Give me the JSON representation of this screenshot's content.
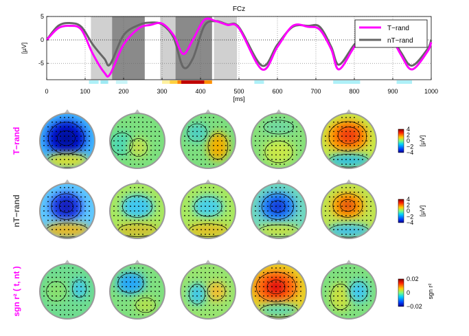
{
  "chart_data": [
    {
      "type": "line",
      "title": "FCz",
      "xlabel": "[ms]",
      "ylabel": "[µV]",
      "xlim": [
        0,
        1000
      ],
      "ylim": [
        -8.5,
        5
      ],
      "x_ticks": [
        "0",
        "100",
        "200",
        "300",
        "400",
        "500",
        "600",
        "700",
        "800",
        "900",
        "1000"
      ],
      "y_ticks": [
        "5",
        "0",
        "-5"
      ],
      "grid": "dotted",
      "legend": "top-right",
      "series": [
        {
          "name": "T−rand",
          "color": "#ff00ff",
          "x": [
            0,
            30,
            60,
            90,
            120,
            150,
            165,
            200,
            240,
            270,
            300,
            330,
            355,
            380,
            410,
            440,
            470,
            500,
            560,
            600,
            640,
            680,
            710,
            740,
            760,
            800,
            840,
            880,
            920,
            950,
            990,
            1000
          ],
          "y": [
            0,
            2.5,
            3,
            2.2,
            -3,
            -7,
            -7.3,
            -1,
            2.5,
            3.2,
            3.5,
            1,
            -3,
            0,
            4.3,
            4,
            3.2,
            2.5,
            -6.3,
            -1.5,
            3,
            2.8,
            2.2,
            -2,
            -6.3,
            -1.5,
            2.7,
            2.8,
            -3,
            -6.3,
            -2.5,
            -0.5
          ]
        },
        {
          "name": "nT−rand",
          "color": "#666666",
          "x": [
            0,
            30,
            60,
            90,
            120,
            150,
            165,
            200,
            240,
            270,
            300,
            330,
            355,
            380,
            410,
            440,
            470,
            500,
            560,
            600,
            640,
            680,
            710,
            740,
            760,
            800,
            840,
            880,
            920,
            950,
            990,
            1000
          ],
          "y": [
            0,
            3,
            3.6,
            2.8,
            -1,
            -4,
            -5.2,
            1,
            3.2,
            3.7,
            3.3,
            0.5,
            -5.8,
            -4,
            3,
            4,
            3.3,
            2.7,
            -5.5,
            -1,
            2.8,
            3,
            2.8,
            -1.5,
            -5.3,
            -1,
            2.6,
            3,
            -2.5,
            -5.5,
            -2,
            0
          ]
        }
      ],
      "shaded_intervals": [
        {
          "x": [
            115,
            170
          ],
          "shade": "light"
        },
        {
          "x": [
            170,
            255
          ],
          "shade": "dark"
        },
        {
          "x": [
            295,
            335
          ],
          "shade": "light"
        },
        {
          "x": [
            335,
            430
          ],
          "shade": "dark"
        },
        {
          "x": [
            435,
            495
          ],
          "shade": "light"
        }
      ]
    },
    {
      "type": "heatmap",
      "rows": [
        {
          "label": "T−rand",
          "color": "#ff00ff",
          "colorbar": {
            "ticks": [
              "4",
              "2",
              "0",
              "−2",
              "−4"
            ],
            "unit": "[µV]"
          },
          "maps": [
            {
              "bg": "#3fb4ff",
              "blobs": [
                {
                  "x": 0.48,
                  "y": 0.45,
                  "rx": 0.36,
                  "ry": 0.32,
                  "c": "#0018d0"
                },
                {
                  "x": 0.48,
                  "y": 0.45,
                  "rx": 0.18,
                  "ry": 0.15,
                  "c": "#000a9a"
                },
                {
                  "x": 0.5,
                  "y": 0.86,
                  "rx": 0.4,
                  "ry": 0.14,
                  "c": "#d8e030"
                }
              ]
            },
            {
              "bg": "#7de07f",
              "blobs": [
                {
                  "x": 0.22,
                  "y": 0.55,
                  "rx": 0.22,
                  "ry": 0.22,
                  "c": "#50d8b0"
                },
                {
                  "x": 0.52,
                  "y": 0.62,
                  "rx": 0.18,
                  "ry": 0.18,
                  "c": "#c0e050"
                }
              ]
            },
            {
              "bg": "#7dde7f",
              "blobs": [
                {
                  "x": 0.68,
                  "y": 0.6,
                  "rx": 0.2,
                  "ry": 0.26,
                  "c": "#f0b000"
                },
                {
                  "x": 0.3,
                  "y": 0.35,
                  "rx": 0.2,
                  "ry": 0.18,
                  "c": "#50d0c0"
                }
              ]
            },
            {
              "bg": "#88e07a",
              "blobs": [
                {
                  "x": 0.5,
                  "y": 0.25,
                  "rx": 0.3,
                  "ry": 0.14,
                  "c": "#70d8a0"
                },
                {
                  "x": 0.5,
                  "y": 0.7,
                  "rx": 0.28,
                  "ry": 0.22,
                  "c": "#c8e848"
                }
              ]
            },
            {
              "bg": "#c8e848",
              "blobs": [
                {
                  "x": 0.48,
                  "y": 0.42,
                  "rx": 0.38,
                  "ry": 0.3,
                  "c": "#ff9a00"
                },
                {
                  "x": 0.5,
                  "y": 0.4,
                  "rx": 0.22,
                  "ry": 0.17,
                  "c": "#f04010"
                },
                {
                  "x": 0.5,
                  "y": 0.86,
                  "rx": 0.4,
                  "ry": 0.13,
                  "c": "#30c0e0"
                }
              ]
            }
          ]
        },
        {
          "label": "nT−rand",
          "color": "#555555",
          "colorbar": {
            "ticks": [
              "4",
              "2",
              "0",
              "−2",
              "−4"
            ],
            "unit": "[µV]"
          },
          "maps": [
            {
              "bg": "#60c8ff",
              "blobs": [
                {
                  "x": 0.48,
                  "y": 0.42,
                  "rx": 0.3,
                  "ry": 0.26,
                  "c": "#2040e8"
                },
                {
                  "x": 0.48,
                  "y": 0.42,
                  "rx": 0.14,
                  "ry": 0.12,
                  "c": "#0818b0"
                },
                {
                  "x": 0.5,
                  "y": 0.85,
                  "rx": 0.42,
                  "ry": 0.14,
                  "c": "#e8b820"
                }
              ]
            },
            {
              "bg": "#a8e860",
              "blobs": [
                {
                  "x": 0.5,
                  "y": 0.42,
                  "rx": 0.3,
                  "ry": 0.22,
                  "c": "#40c8f0"
                },
                {
                  "x": 0.5,
                  "y": 0.85,
                  "rx": 0.38,
                  "ry": 0.13,
                  "c": "#d0c030"
                }
              ]
            },
            {
              "bg": "#a8e860",
              "blobs": [
                {
                  "x": 0.5,
                  "y": 0.42,
                  "rx": 0.28,
                  "ry": 0.2,
                  "c": "#48d0e8"
                },
                {
                  "x": 0.5,
                  "y": 0.85,
                  "rx": 0.38,
                  "ry": 0.13,
                  "c": "#e0c028"
                }
              ]
            },
            {
              "bg": "#70d8c0",
              "blobs": [
                {
                  "x": 0.48,
                  "y": 0.42,
                  "rx": 0.32,
                  "ry": 0.26,
                  "c": "#2080ff"
                },
                {
                  "x": 0.48,
                  "y": 0.42,
                  "rx": 0.15,
                  "ry": 0.12,
                  "c": "#1030d0"
                },
                {
                  "x": 0.5,
                  "y": 0.86,
                  "rx": 0.4,
                  "ry": 0.12,
                  "c": "#c8e040"
                }
              ]
            },
            {
              "bg": "#c0e450",
              "blobs": [
                {
                  "x": 0.48,
                  "y": 0.4,
                  "rx": 0.3,
                  "ry": 0.24,
                  "c": "#ffa000"
                },
                {
                  "x": 0.48,
                  "y": 0.4,
                  "rx": 0.15,
                  "ry": 0.12,
                  "c": "#e05010"
                },
                {
                  "x": 0.5,
                  "y": 0.86,
                  "rx": 0.4,
                  "ry": 0.13,
                  "c": "#40c0e8"
                }
              ]
            }
          ]
        },
        {
          "label": "sgn r² ( t, nt )",
          "color": "#ff00ff",
          "colorbar": {
            "ticks": [
              "0.02",
              "0",
              "−0.02"
            ],
            "unit": "sgn r²"
          },
          "maps": [
            {
              "bg": "#70dc90",
              "blobs": [
                {
                  "x": 0.72,
                  "y": 0.45,
                  "rx": 0.14,
                  "ry": 0.18,
                  "c": "#40c8e8"
                },
                {
                  "x": 0.3,
                  "y": 0.5,
                  "rx": 0.2,
                  "ry": 0.2,
                  "c": "#88e070"
                }
              ]
            },
            {
              "bg": "#80e080",
              "blobs": [
                {
                  "x": 0.38,
                  "y": 0.35,
                  "rx": 0.26,
                  "ry": 0.2,
                  "c": "#28a8f8"
                },
                {
                  "x": 0.65,
                  "y": 0.75,
                  "rx": 0.2,
                  "ry": 0.15,
                  "c": "#b0e050"
                }
              ]
            },
            {
              "bg": "#98e470",
              "blobs": [
                {
                  "x": 0.65,
                  "y": 0.5,
                  "rx": 0.18,
                  "ry": 0.18,
                  "c": "#f0c030"
                },
                {
                  "x": 0.3,
                  "y": 0.55,
                  "rx": 0.16,
                  "ry": 0.2,
                  "c": "#40c8e8"
                }
              ]
            },
            {
              "bg": "#e8d028",
              "blobs": [
                {
                  "x": 0.45,
                  "y": 0.42,
                  "rx": 0.4,
                  "ry": 0.3,
                  "c": "#ff6a10"
                },
                {
                  "x": 0.45,
                  "y": 0.42,
                  "rx": 0.18,
                  "ry": 0.14,
                  "c": "#e01010"
                },
                {
                  "x": 0.5,
                  "y": 0.85,
                  "rx": 0.38,
                  "ry": 0.13,
                  "c": "#60d8b0"
                }
              ]
            },
            {
              "bg": "#80e080",
              "blobs": [
                {
                  "x": 0.35,
                  "y": 0.6,
                  "rx": 0.2,
                  "ry": 0.26,
                  "c": "#c8e040"
                },
                {
                  "x": 0.68,
                  "y": 0.5,
                  "rx": 0.18,
                  "ry": 0.2,
                  "c": "#40c8f0"
                }
              ]
            }
          ]
        }
      ]
    }
  ]
}
